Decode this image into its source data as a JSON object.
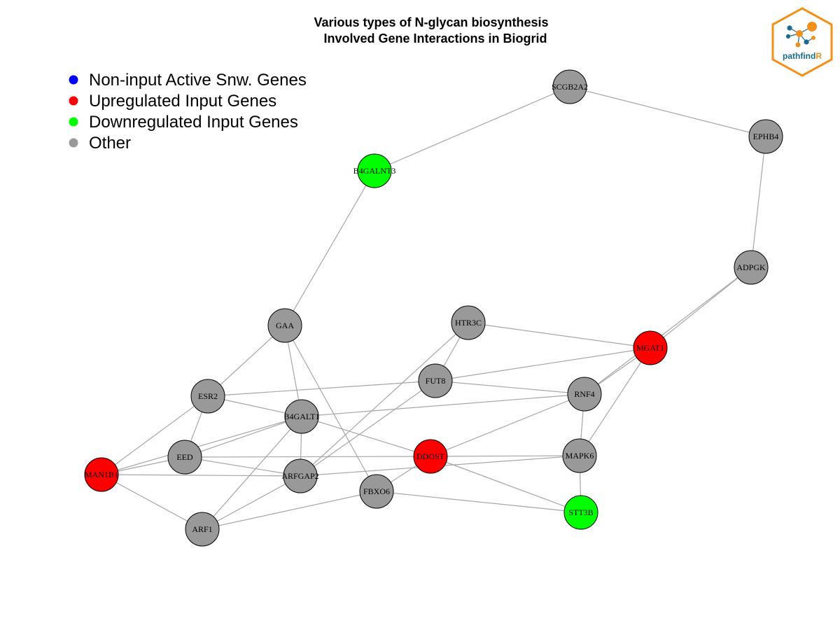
{
  "title": {
    "line1": "Various types of N-glycan biosynthesis",
    "line2": "Involved Gene Interactions in Biogrid"
  },
  "colors": {
    "non_input": "#0000ff",
    "up": "#ff0000",
    "down": "#00ff00",
    "other": "#999999",
    "edge": "#a6a6a6",
    "logo_orange": "#f39019",
    "logo_blue": "#1a6b8f"
  },
  "legend": [
    {
      "label": "Non-input Active Snw. Genes",
      "status": "non_input"
    },
    {
      "label": "Upregulated Input Genes",
      "status": "up"
    },
    {
      "label": "Downregulated Input Genes",
      "status": "down"
    },
    {
      "label": "Other",
      "status": "other"
    }
  ],
  "logo": {
    "prefix": "pathfind",
    "suffix": "R",
    "icon": "network-hexagon-logo"
  },
  "nodes": [
    {
      "id": "SCGB2A2",
      "status": "other"
    },
    {
      "id": "EPHB4",
      "status": "other"
    },
    {
      "id": "B4GALNT3",
      "status": "down"
    },
    {
      "id": "ADPGK",
      "status": "other"
    },
    {
      "id": "GAA",
      "status": "other"
    },
    {
      "id": "HTR3C",
      "status": "other"
    },
    {
      "id": "MGAT1",
      "status": "up"
    },
    {
      "id": "FUT8",
      "status": "other"
    },
    {
      "id": "ESR2",
      "status": "other"
    },
    {
      "id": "RNF4",
      "status": "other"
    },
    {
      "id": "B4GALT1",
      "status": "other"
    },
    {
      "id": "DDOST",
      "status": "up"
    },
    {
      "id": "EED",
      "status": "other"
    },
    {
      "id": "MAPK6",
      "status": "other"
    },
    {
      "id": "MAN1B1",
      "status": "up"
    },
    {
      "id": "ARFGAP2",
      "status": "other"
    },
    {
      "id": "FBXO6",
      "status": "other"
    },
    {
      "id": "STT3B",
      "status": "down"
    },
    {
      "id": "ARF1",
      "status": "other"
    }
  ],
  "edges": [
    [
      "SCGB2A2",
      "EPHB4"
    ],
    [
      "SCGB2A2",
      "B4GALNT3"
    ],
    [
      "EPHB4",
      "ADPGK"
    ],
    [
      "B4GALNT3",
      "GAA"
    ],
    [
      "ADPGK",
      "MGAT1"
    ],
    [
      "ADPGK",
      "RNF4"
    ],
    [
      "GAA",
      "ESR2"
    ],
    [
      "GAA",
      "B4GALT1"
    ],
    [
      "GAA",
      "FBXO6"
    ],
    [
      "HTR3C",
      "MGAT1"
    ],
    [
      "HTR3C",
      "FUT8"
    ],
    [
      "HTR3C",
      "ARFGAP2"
    ],
    [
      "MGAT1",
      "FUT8"
    ],
    [
      "MGAT1",
      "RNF4"
    ],
    [
      "MGAT1",
      "MAPK6"
    ],
    [
      "FUT8",
      "ESR2"
    ],
    [
      "FUT8",
      "RNF4"
    ],
    [
      "FUT8",
      "ARFGAP2"
    ],
    [
      "ESR2",
      "B4GALT1"
    ],
    [
      "ESR2",
      "EED"
    ],
    [
      "ESR2",
      "MAN1B1"
    ],
    [
      "RNF4",
      "B4GALT1"
    ],
    [
      "RNF4",
      "DDOST"
    ],
    [
      "RNF4",
      "MAPK6"
    ],
    [
      "B4GALT1",
      "EED"
    ],
    [
      "B4GALT1",
      "MAN1B1"
    ],
    [
      "B4GALT1",
      "ARFGAP2"
    ],
    [
      "B4GALT1",
      "DDOST"
    ],
    [
      "B4GALT1",
      "ARF1"
    ],
    [
      "DDOST",
      "EED"
    ],
    [
      "DDOST",
      "MAPK6"
    ],
    [
      "DDOST",
      "FBXO6"
    ],
    [
      "DDOST",
      "STT3B"
    ],
    [
      "EED",
      "MAN1B1"
    ],
    [
      "EED",
      "ARFGAP2"
    ],
    [
      "MAPK6",
      "ARFGAP2"
    ],
    [
      "MAPK6",
      "STT3B"
    ],
    [
      "MAN1B1",
      "ARFGAP2"
    ],
    [
      "MAN1B1",
      "ARF1"
    ],
    [
      "ARFGAP2",
      "ARF1"
    ],
    [
      "FBXO6",
      "STT3B"
    ],
    [
      "FBXO6",
      "ARF1"
    ]
  ]
}
